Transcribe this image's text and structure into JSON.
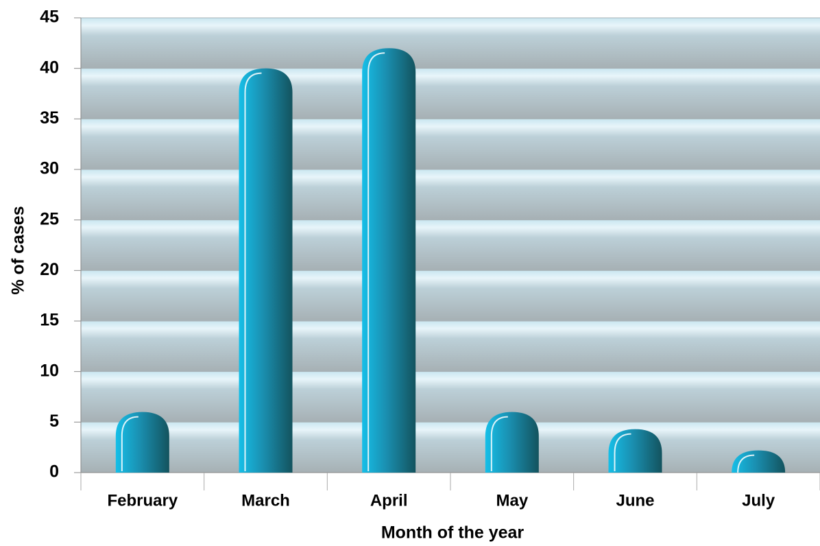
{
  "chart_data": {
    "type": "bar",
    "categories": [
      "February",
      "March",
      "April",
      "May",
      "June",
      "July"
    ],
    "values": [
      6,
      40,
      42,
      6,
      4.3,
      2.2
    ],
    "color": "#12b3dc",
    "xlabel": "Month of the year",
    "ylabel": "% of cases",
    "ylim": [
      0,
      45
    ],
    "yticks": [
      0,
      5,
      10,
      15,
      20,
      25,
      30,
      35,
      40,
      45
    ],
    "grid": true
  }
}
